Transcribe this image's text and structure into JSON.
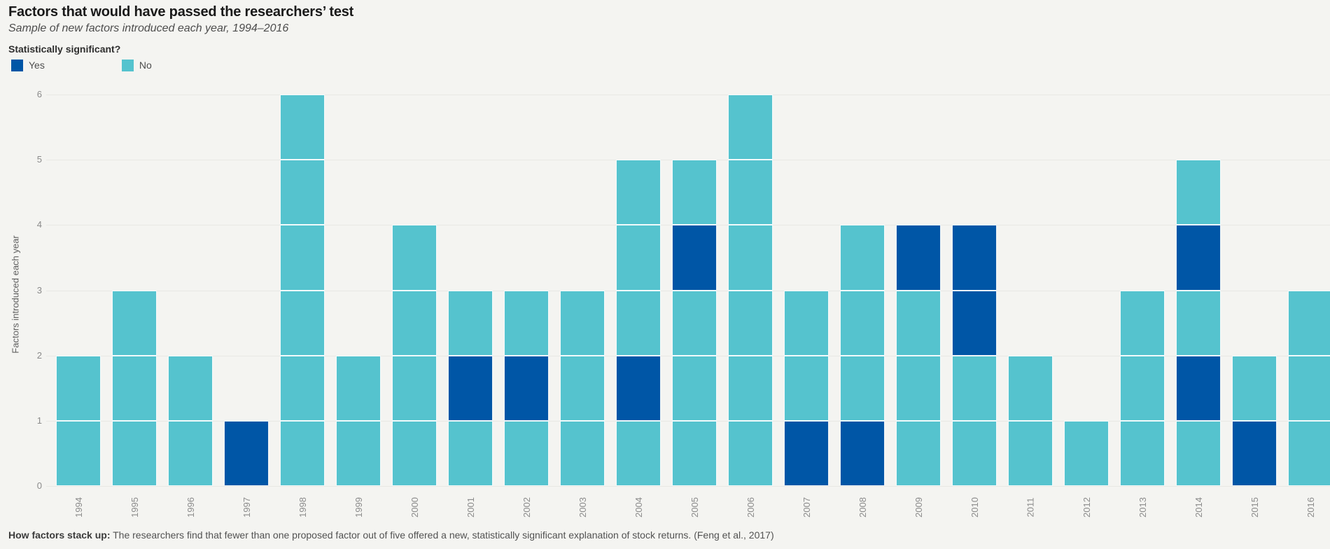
{
  "header": {
    "title": "Factors that would have passed the researchers’ test",
    "subtitle": "Sample of new factors introduced each year, 1994–2016"
  },
  "legend": {
    "title": "Statistically significant?",
    "items": [
      {
        "key": "Yes",
        "label": "Yes",
        "color": "#0056a6"
      },
      {
        "key": "No",
        "label": "No",
        "color": "#55c3ce"
      }
    ]
  },
  "footer": {
    "lead": "How factors stack up:",
    "text": "The researchers find that fewer than one proposed factor out of five offered a new, statistically significant explanation of stock returns. (Feng et al., 2017)"
  },
  "chart_data": {
    "type": "bar",
    "stacked": true,
    "title": "Factors that would have passed the researchers’ test",
    "subtitle": "Sample of new factors introduced each year, 1994–2016",
    "legend_title": "Statistically significant?",
    "legend_entries": [
      "Yes",
      "No"
    ],
    "legend_position": "top-left",
    "grid": "horizontal",
    "categories": [
      "1994",
      "1995",
      "1996",
      "1997",
      "1998",
      "1999",
      "2000",
      "2001",
      "2002",
      "2003",
      "2004",
      "2005",
      "2006",
      "2007",
      "2008",
      "2009",
      "2010",
      "2011",
      "2012",
      "2013",
      "2014",
      "2015",
      "2016"
    ],
    "series": [
      {
        "name": "Yes",
        "values": [
          0,
          0,
          0,
          1,
          0,
          0,
          0,
          1,
          1,
          0,
          1,
          1,
          0,
          1,
          1,
          1,
          2,
          0,
          0,
          0,
          2,
          1,
          0
        ]
      },
      {
        "name": "No",
        "values": [
          2,
          3,
          2,
          0,
          6,
          2,
          4,
          2,
          2,
          3,
          4,
          4,
          6,
          2,
          3,
          3,
          2,
          2,
          1,
          3,
          3,
          1,
          3
        ]
      }
    ],
    "stacks_bottom_to_top": [
      [
        "No",
        "No"
      ],
      [
        "No",
        "No",
        "No"
      ],
      [
        "No",
        "No"
      ],
      [
        "Yes"
      ],
      [
        "No",
        "No",
        "No",
        "No",
        "No",
        "No"
      ],
      [
        "No",
        "No"
      ],
      [
        "No",
        "No",
        "No",
        "No"
      ],
      [
        "No",
        "Yes",
        "No"
      ],
      [
        "No",
        "Yes",
        "No"
      ],
      [
        "No",
        "No",
        "No"
      ],
      [
        "No",
        "Yes",
        "No",
        "No",
        "No"
      ],
      [
        "No",
        "No",
        "No",
        "Yes",
        "No"
      ],
      [
        "No",
        "No",
        "No",
        "No",
        "No",
        "No"
      ],
      [
        "Yes",
        "No",
        "No"
      ],
      [
        "Yes",
        "No",
        "No",
        "No"
      ],
      [
        "No",
        "No",
        "No",
        "Yes"
      ],
      [
        "No",
        "No",
        "Yes",
        "Yes"
      ],
      [
        "No",
        "No"
      ],
      [
        "No"
      ],
      [
        "No",
        "No",
        "No"
      ],
      [
        "No",
        "Yes",
        "No",
        "Yes",
        "No"
      ],
      [
        "Yes",
        "No"
      ],
      [
        "No",
        "No",
        "No"
      ]
    ],
    "xlabel": "",
    "ylabel": "Factors introduced each year",
    "ylim": [
      0,
      6
    ],
    "yticks": [
      0,
      1,
      2,
      3,
      4,
      5,
      6
    ],
    "colors": {
      "Yes": "#0056a6",
      "No": "#55c3ce"
    },
    "background": "#f4f4f1"
  }
}
